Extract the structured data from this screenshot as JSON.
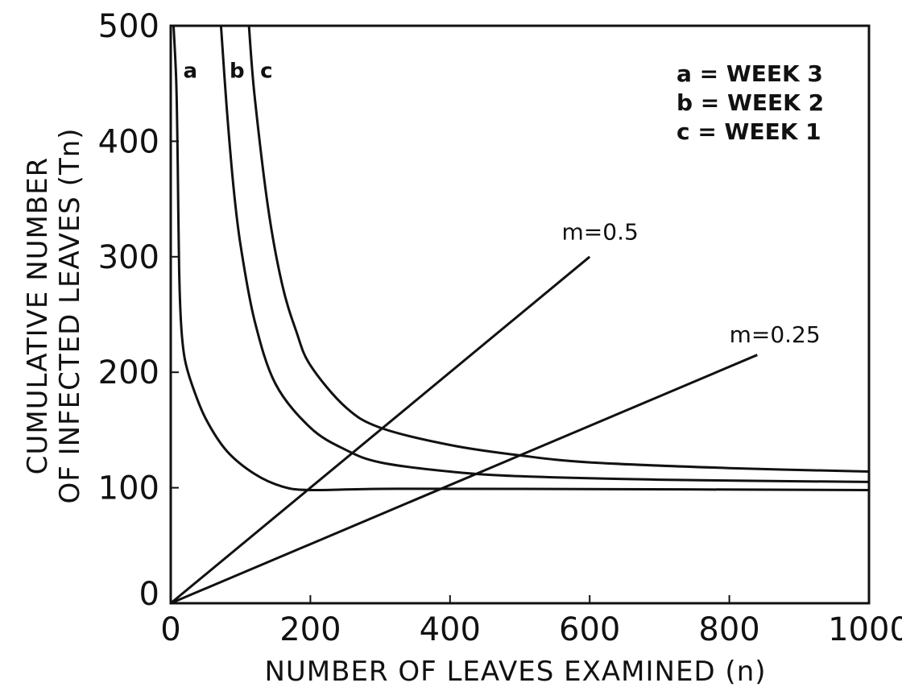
{
  "chart_data": {
    "type": "line",
    "xlabel": "NUMBER OF LEAVES EXAMINED (n)",
    "ylabel_lines": [
      "CUMULATIVE NUMBER",
      "OF INFECTED LEAVES (Tn)"
    ],
    "xlim": [
      0,
      1000
    ],
    "ylim": [
      0,
      500
    ],
    "xticks": [
      "0",
      "200",
      "400",
      "600",
      "800",
      "1000"
    ],
    "yticks": [
      "0",
      "100",
      "200",
      "300",
      "400",
      "500"
    ],
    "grid": false,
    "legend": {
      "placement": "top-right",
      "entries": [
        "a = WEEK 3",
        "b = WEEK 2",
        "c = WEEK 1"
      ]
    },
    "series": [
      {
        "name": "a",
        "x": [
          4,
          8,
          10,
          12,
          15,
          20,
          30,
          50,
          80,
          120,
          160,
          200,
          300,
          500,
          1000
        ],
        "y": [
          500,
          450,
          380,
          290,
          240,
          212,
          190,
          160,
          132,
          112,
          101,
          98,
          99,
          99,
          98
        ]
      },
      {
        "name": "b",
        "x": [
          72,
          80,
          90,
          100,
          120,
          150,
          200,
          250,
          300,
          400,
          500,
          700,
          1000
        ],
        "y": [
          500,
          430,
          360,
          310,
          245,
          190,
          152,
          133,
          122,
          114,
          110,
          107,
          105
        ]
      },
      {
        "name": "c",
        "x": [
          112,
          120,
          140,
          160,
          180,
          200,
          250,
          300,
          400,
          500,
          600,
          800,
          1000
        ],
        "y": [
          500,
          440,
          340,
          275,
          235,
          206,
          170,
          152,
          137,
          128,
          122,
          117,
          114
        ]
      },
      {
        "name": "m=0.5",
        "x": [
          0,
          600
        ],
        "y": [
          0,
          300
        ]
      },
      {
        "name": "m=0.25",
        "x": [
          0,
          840
        ],
        "y": [
          0,
          215
        ]
      }
    ],
    "curve_labels": [
      {
        "text": "a",
        "x": 28,
        "y": 455
      },
      {
        "text": "b",
        "x": 95,
        "y": 455
      },
      {
        "text": "c",
        "x": 137,
        "y": 455
      }
    ],
    "annotations": [
      {
        "text": "m=0.5",
        "x": 560,
        "y": 315
      },
      {
        "text": "m=0.25",
        "x": 800,
        "y": 226
      }
    ]
  }
}
